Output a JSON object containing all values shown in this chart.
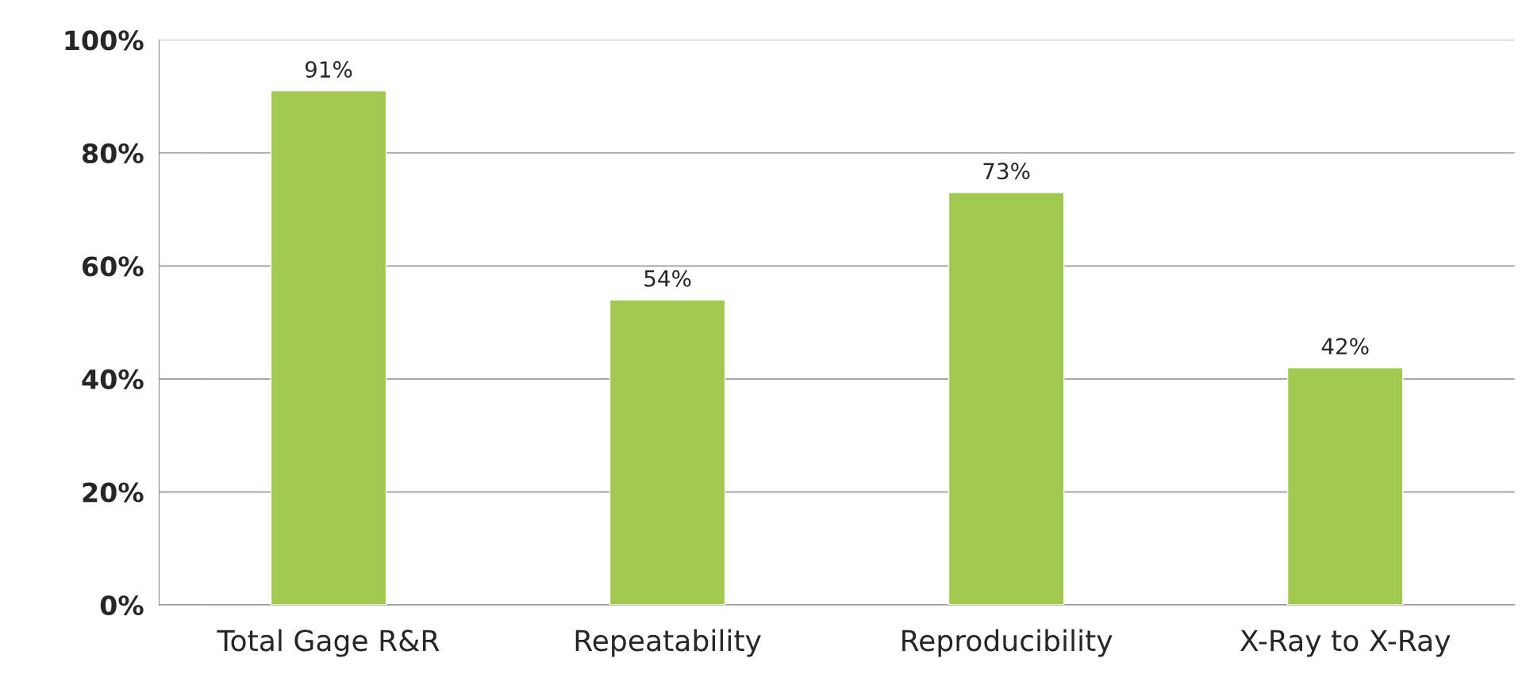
{
  "chart_data": {
    "type": "bar",
    "categories": [
      "Total Gage R&R",
      "Repeatability",
      "Reproducibility",
      "X-Ray to X-Ray"
    ],
    "values": [
      91,
      54,
      73,
      42
    ],
    "value_labels": [
      "91%",
      "54%",
      "73%",
      "42%"
    ],
    "color": "#a2c94f",
    "ylim": [
      0,
      100
    ],
    "yticks": [
      {
        "value": 0,
        "label": "0%"
      },
      {
        "value": 20,
        "label": "20%"
      },
      {
        "value": 40,
        "label": "40%"
      },
      {
        "value": 60,
        "label": "60%"
      },
      {
        "value": 80,
        "label": "80%"
      },
      {
        "value": 100,
        "label": "100%"
      }
    ],
    "grid": "y",
    "legend": false
  }
}
